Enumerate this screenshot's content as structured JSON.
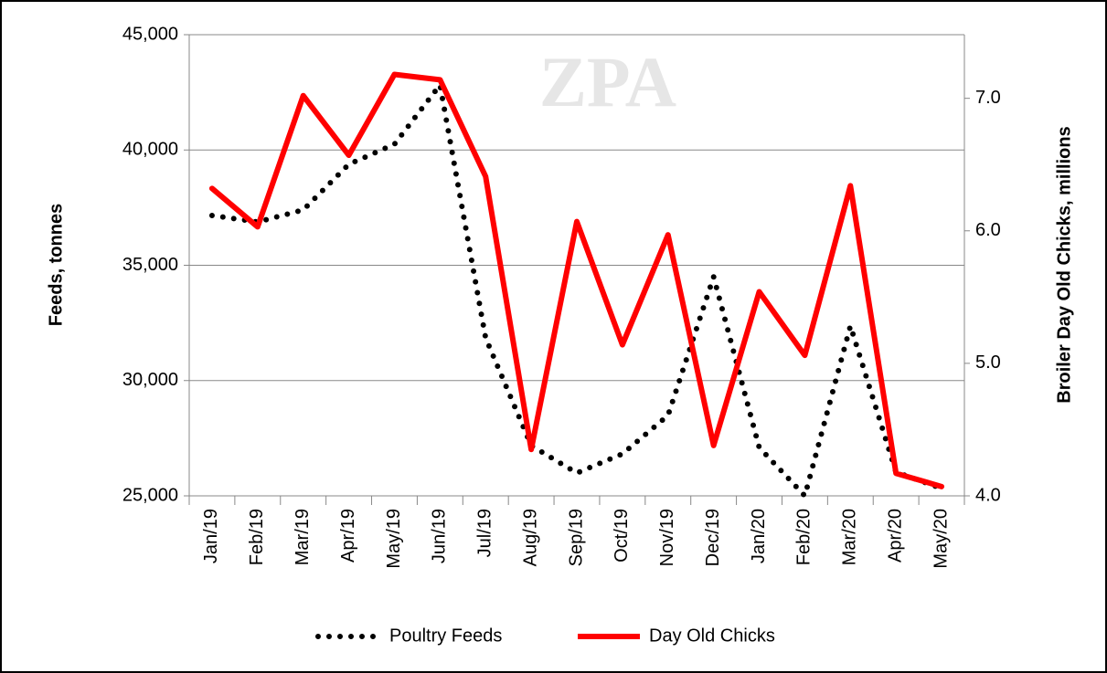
{
  "chart_data": {
    "type": "line",
    "watermark": "ZPA",
    "y_label": "Feeds, tonnes",
    "y2_label": "Broiler Day Old Chicks, millions",
    "categories": [
      "Jan/19",
      "Feb/19",
      "Mar/19",
      "Apr/19",
      "May/19",
      "Jun/19",
      "Jul/19",
      "Aug/19",
      "Sep/19",
      "Oct/19",
      "Nov/19",
      "Dec/19",
      "Jan/20",
      "Feb/20",
      "Mar/20",
      "Apr/20",
      "May/20"
    ],
    "series": [
      {
        "name": "Poultry Feeds",
        "color": "#000000",
        "style": "dotted",
        "values": [
          37160,
          36880,
          37400,
          39380,
          40250,
          42820,
          31850,
          27180,
          25990,
          26820,
          28490,
          34500,
          27100,
          25000,
          32370,
          26030,
          25320
        ]
      },
      {
        "name": "Day Old Chicks",
        "color": "#ff0000",
        "style": "solid",
        "axis": "y2",
        "values": [
          6.32,
          6.03,
          7.02,
          6.57,
          7.18,
          7.14,
          6.41,
          4.35,
          6.07,
          5.14,
          5.97,
          4.38,
          5.54,
          5.06,
          6.34,
          4.17,
          4.07
        ]
      }
    ],
    "ylim": [
      25000,
      45000
    ],
    "yticks": [
      {
        "value": 25000,
        "label": "25,000"
      },
      {
        "value": 30000,
        "label": "30,000"
      },
      {
        "value": 35000,
        "label": "35,000"
      },
      {
        "value": 40000,
        "label": "40,000"
      },
      {
        "value": 45000,
        "label": "45,000"
      }
    ],
    "y2lim": [
      4,
      7.48
    ],
    "y2ticks": [
      {
        "value": 4,
        "label": "4.0"
      },
      {
        "value": 5,
        "label": "5.0"
      },
      {
        "value": 6,
        "label": "6.0"
      },
      {
        "value": 7,
        "label": "7.0"
      }
    ],
    "grid": true,
    "legend": "bottom"
  }
}
